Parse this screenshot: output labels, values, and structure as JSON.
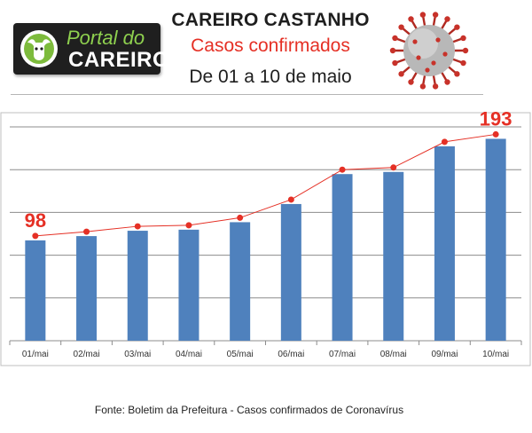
{
  "header": {
    "logo_line1": "Portal do",
    "logo_line2": "CAREIRO",
    "title": "CAREIRO CASTANHO",
    "subtitle": "Casos confirmados",
    "period": "De 01 a 10 de maio"
  },
  "chart_data": {
    "type": "bar",
    "overlay": "line",
    "categories": [
      "01/mai",
      "02/mai",
      "03/mai",
      "04/mai",
      "05/mai",
      "06/mai",
      "07/mai",
      "08/mai",
      "09/mai",
      "10/mai"
    ],
    "values": [
      98,
      102,
      107,
      108,
      115,
      132,
      160,
      162,
      186,
      193
    ],
    "ylim": [
      0,
      200
    ],
    "grid": true,
    "data_labels": [
      {
        "index": 0,
        "text": "98"
      },
      {
        "index": 9,
        "text": "193"
      }
    ],
    "colors": {
      "bar": "#4f81bd",
      "line": "#e53025",
      "marker": "#e53025",
      "label": "#e53025",
      "grid": "#8c8c8c",
      "frame": "#bfbfbf"
    }
  },
  "footer": {
    "source": "Fonte: Boletim da Prefeitura - Casos confirmados de Coronavírus"
  },
  "icons": {
    "logo_badge": "bull-head-icon",
    "virus": "coronavirus-icon"
  }
}
